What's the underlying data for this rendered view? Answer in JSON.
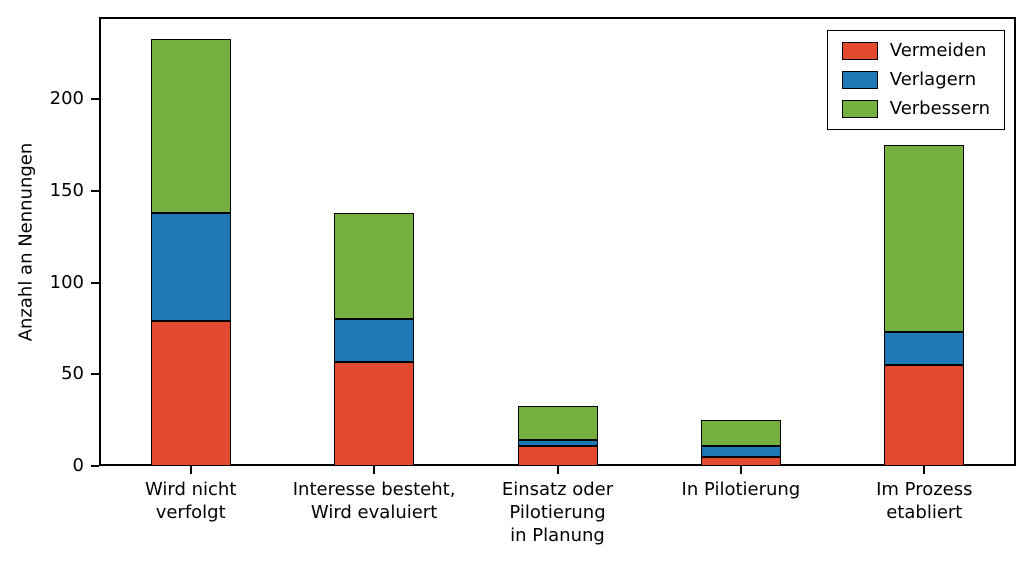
{
  "chart_data": {
    "type": "bar",
    "stacked": true,
    "title": "",
    "xlabel": "",
    "ylabel": "Anzahl an Nennungen",
    "categories": [
      "Wird nicht\nverfolgt",
      "Interesse besteht,\nWird evaluiert",
      "Einsatz oder\nPilotierung\nin Planung",
      "In Pilotierung",
      "Im Prozess\netabliert"
    ],
    "series": [
      {
        "name": "Vermeiden",
        "color": "#e2492f",
        "values": [
          79,
          57,
          11,
          5,
          55
        ]
      },
      {
        "name": "Verlagern",
        "color": "#1f77b4",
        "values": [
          59,
          23,
          3,
          6,
          18
        ]
      },
      {
        "name": "Verbessern",
        "color": "#76b041",
        "values": [
          95,
          58,
          19,
          14,
          102
        ]
      }
    ],
    "totals": [
      233,
      138,
      33,
      25,
      175
    ],
    "yticks": [
      0,
      50,
      100,
      150,
      200
    ],
    "ylim": [
      0,
      245
    ],
    "grid": false,
    "legend_position": "upper right",
    "bar_edge_color": "#000000"
  }
}
